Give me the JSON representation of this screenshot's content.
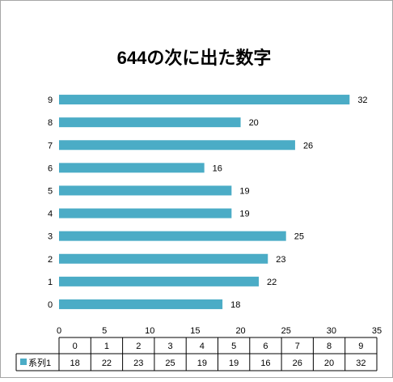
{
  "chart_data": {
    "type": "bar",
    "orientation": "horizontal",
    "title": "644の次に出た数字",
    "categories": [
      "0",
      "1",
      "2",
      "3",
      "4",
      "5",
      "6",
      "7",
      "8",
      "9"
    ],
    "series": [
      {
        "name": "系列1",
        "values": [
          18,
          22,
          23,
          25,
          19,
          19,
          16,
          26,
          20,
          32
        ]
      }
    ],
    "xlim": [
      0,
      35
    ],
    "xticks": [
      0,
      5,
      10,
      15,
      20,
      25,
      30,
      35
    ],
    "grid": false,
    "data_table": true,
    "legend": "data-table",
    "colors": {
      "bar": "#4bacc6",
      "frame": "#a6a6a6",
      "text": "#000000"
    }
  }
}
